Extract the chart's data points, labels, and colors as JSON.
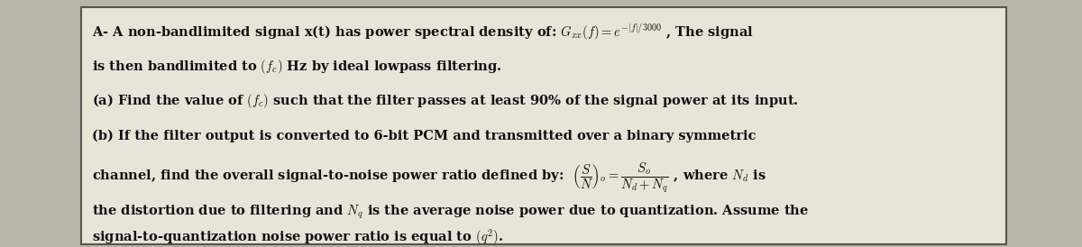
{
  "bg_color": "#b8b4a8",
  "box_color": "#e8e4d8",
  "box_edge_color": "#555550",
  "text_color": "#111111",
  "line1": "A- A non-bandlimited signal x(t) has power spectral density of: $G_{xx}(f)=e^{-|f|/3000}$ , The signal",
  "line2": "is then bandlimited to $(f_c)$ Hz by ideal lowpass filtering.",
  "line3": "(a) Find the value of $(f_c)$ such that the filter passes at least 90% of the signal power at its input.",
  "line4": "(b) If the filter output is converted to 6-bit PCM and transmitted over a binary symmetric",
  "line5": "channel, find the overall signal-to-noise power ratio defined by:  $\\left(\\dfrac{S}{N}\\right)_o = \\dfrac{S_o}{N_d+N_q}$ , where $N_d$ is",
  "line6": "the distortion due to filtering and $N_q$ is the average noise power due to quantization. Assume the",
  "line7": "signal-to-quantization noise power ratio is equal to $(q^2)$.",
  "figwidth": 12.0,
  "figheight": 2.74,
  "dpi": 100
}
